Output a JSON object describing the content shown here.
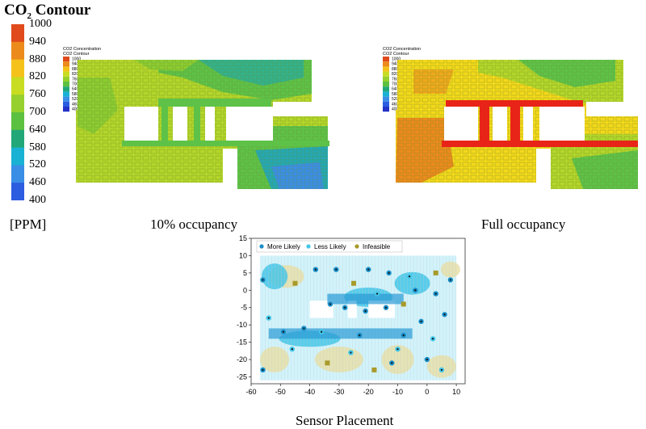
{
  "title": {
    "main": "CO",
    "sub": "2",
    "rest": " Contour"
  },
  "colorbar": {
    "ticks": [
      "1000",
      "940",
      "880",
      "820",
      "760",
      "700",
      "640",
      "580",
      "520",
      "460",
      "400"
    ],
    "colors": [
      "#e04a1c",
      "#ec8a1c",
      "#f4c21a",
      "#c8dc22",
      "#96d02e",
      "#5cc040",
      "#22a878",
      "#1ab2d4",
      "#3a8ee6",
      "#2c5ce0",
      "#2432c8"
    ],
    "unit": "[PPM]"
  },
  "panel_10": {
    "caption": "10% occupancy",
    "legend_title1": "CO2 Concentration",
    "legend_title2": "CO2 Contour",
    "legend_ticks": [
      "1000",
      "940",
      "880",
      "820",
      "760",
      "700",
      "640",
      "580",
      "520",
      "460",
      "400"
    ]
  },
  "panel_full": {
    "caption": "Full occupancy",
    "legend_title1": "CO2 Concentration",
    "legend_title2": "CO2 Contour",
    "legend_ticks": [
      "1000",
      "940",
      "880",
      "820",
      "760",
      "700",
      "640",
      "580",
      "520",
      "460",
      "400"
    ]
  },
  "sensor": {
    "caption": "Sensor Placement",
    "legend": [
      {
        "label": "More Likely",
        "color": "#1a8fc8"
      },
      {
        "label": "Less Likely",
        "color": "#44c6e8"
      },
      {
        "label": "Infeasible",
        "color": "#a89a2a"
      }
    ],
    "x_ticks": [
      "-60",
      "-50",
      "-40",
      "-30",
      "-20",
      "-10",
      "0",
      "10"
    ],
    "y_ticks": [
      "15",
      "10",
      "5",
      "0",
      "-5",
      "-10",
      "-15",
      "-20",
      "-25"
    ]
  },
  "chart_data": {
    "type": "scatter",
    "xlim": [
      -60,
      13
    ],
    "ylim": [
      -27,
      15
    ],
    "series": [
      {
        "name": "More Likely",
        "points": [
          [
            -56,
            3
          ],
          [
            -56,
            -23
          ],
          [
            -49,
            -12
          ],
          [
            -42,
            -11
          ],
          [
            -38,
            6
          ],
          [
            -33,
            -4
          ],
          [
            -31,
            6
          ],
          [
            -28,
            -5
          ],
          [
            -23,
            -13
          ],
          [
            -21,
            -6
          ],
          [
            -20,
            6
          ],
          [
            -14,
            -5
          ],
          [
            -13,
            5
          ],
          [
            -12,
            -21
          ],
          [
            -8,
            -13
          ],
          [
            -4,
            0
          ],
          [
            -2,
            -9
          ],
          [
            0,
            -20
          ],
          [
            3,
            -1
          ],
          [
            6,
            -7
          ],
          [
            8,
            3
          ]
        ]
      },
      {
        "name": "Less Likely",
        "points": [
          [
            -54,
            -8
          ],
          [
            -46,
            -17
          ],
          [
            -36,
            -12
          ],
          [
            -26,
            -18
          ],
          [
            -17,
            -1
          ],
          [
            -10,
            -17
          ],
          [
            -6,
            4
          ],
          [
            2,
            -14
          ],
          [
            5,
            -23
          ]
        ]
      },
      {
        "name": "Infeasible",
        "points": [
          [
            -45,
            2
          ],
          [
            -34,
            -21
          ],
          [
            -25,
            2
          ],
          [
            -18,
            -23
          ],
          [
            -8,
            -4
          ],
          [
            3,
            5
          ]
        ]
      }
    ]
  }
}
